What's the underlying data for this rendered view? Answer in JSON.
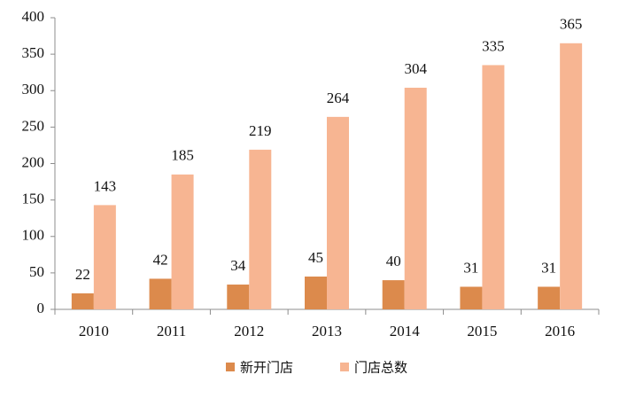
{
  "chart_data": {
    "type": "bar",
    "categories": [
      "2010",
      "2011",
      "2012",
      "2013",
      "2014",
      "2015",
      "2016"
    ],
    "series": [
      {
        "name": "新开门店",
        "color": "#dc8a4c",
        "values": [
          22,
          42,
          34,
          45,
          40,
          31,
          31
        ]
      },
      {
        "name": "门店总数",
        "color": "#f7b592",
        "values": [
          143,
          185,
          219,
          264,
          304,
          335,
          365
        ]
      }
    ],
    "ylim": [
      0,
      400
    ],
    "yticks": [
      0,
      50,
      100,
      150,
      200,
      250,
      300,
      350,
      400
    ],
    "grid": false,
    "legend": "bottom"
  }
}
